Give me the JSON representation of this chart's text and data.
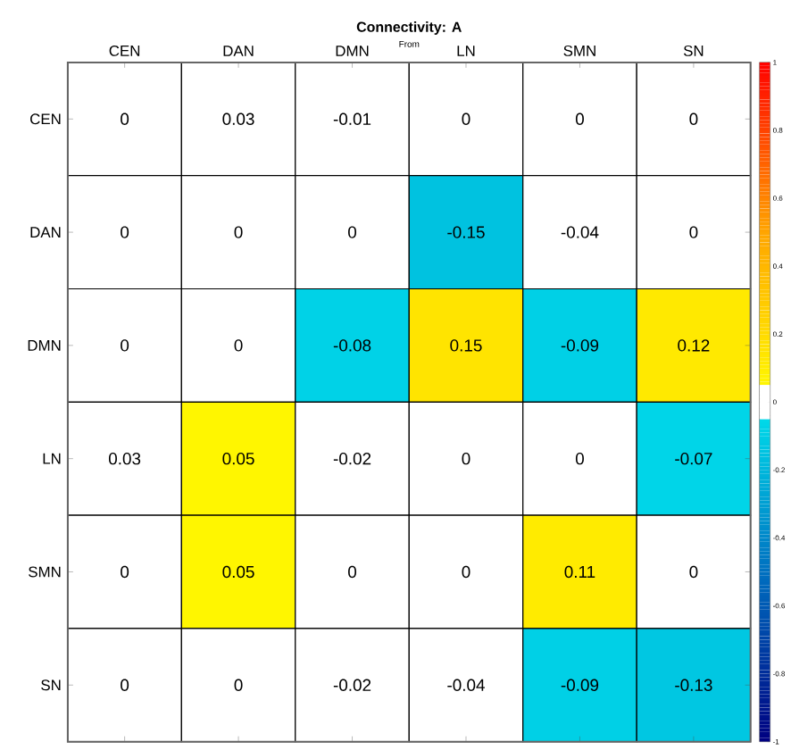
{
  "chart_data": {
    "type": "heatmap",
    "title": "Connectivity: A",
    "categories": [
      "CEN",
      "DAN",
      "DMN",
      "LN",
      "SMN",
      "SN"
    ],
    "y_categories": [
      "CEN",
      "DAN",
      "DMN",
      "LN",
      "SMN",
      "SN"
    ],
    "cells": [
      [
        0,
        0.03,
        -0.01,
        0,
        0,
        0
      ],
      [
        0,
        0,
        0,
        -0.15,
        -0.04,
        0
      ],
      [
        0,
        0,
        -0.08,
        0.15,
        -0.09,
        0.12
      ],
      [
        0.03,
        0.05,
        -0.02,
        0,
        0,
        -0.07
      ],
      [
        0,
        0.05,
        0,
        0,
        0.11,
        0
      ],
      [
        0,
        0,
        -0.02,
        -0.04,
        -0.09,
        -0.13
      ]
    ],
    "cell_labels": [
      [
        "0",
        "0.03",
        "-0.01",
        "0",
        "0",
        "0"
      ],
      [
        "0",
        "0",
        "0",
        "-0.15",
        "-0.04",
        "0"
      ],
      [
        "0",
        "0",
        "-0.08",
        "0.15",
        "-0.09",
        "0.12"
      ],
      [
        "0.03",
        "0.05",
        "-0.02",
        "0",
        "0",
        "-0.07"
      ],
      [
        "0",
        "0.05",
        "0",
        "0",
        "0.11",
        "0"
      ],
      [
        "0",
        "0",
        "-0.02",
        "-0.04",
        "-0.09",
        "-0.13"
      ]
    ],
    "clim": [
      -1,
      1
    ],
    "cticks": [
      -1,
      -0.8,
      -0.6,
      -0.4,
      -0.2,
      0,
      0.2,
      0.4,
      0.6,
      0.8,
      1
    ],
    "annotations": [
      "From"
    ]
  }
}
